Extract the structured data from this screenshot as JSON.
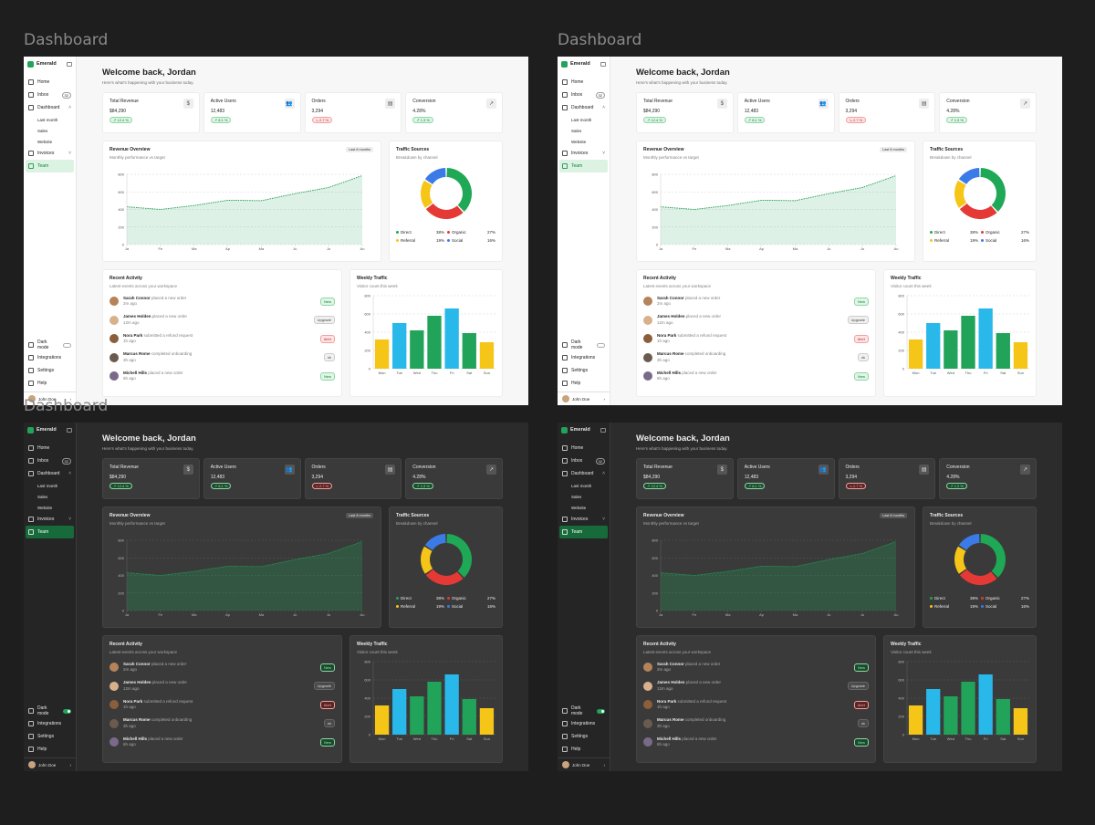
{
  "page_label": "Dashboard",
  "brand": "Emerald",
  "nav": {
    "home": "Home",
    "inbox": "Inbox",
    "inbox_badge": "32",
    "dashboard": "Dashboard",
    "sub": [
      "Last month",
      "Sales",
      "Website"
    ],
    "invoices": "Invoices",
    "team": "Team",
    "dark_mode": "Dark mode",
    "integrations": "Integrations",
    "settings": "Settings",
    "help": "Help"
  },
  "user_name": "John Doe",
  "header": {
    "title": "Welcome back, Jordan",
    "subtitle": "Here's what's happening with your business today."
  },
  "stats": [
    {
      "label": "Total Revenue",
      "value": "$84,290",
      "change": "↗ 12.4 %",
      "dir": "up",
      "icon": "$"
    },
    {
      "label": "Active Users",
      "value": "12,483",
      "change": "↗ 8.1 %",
      "dir": "up",
      "icon": "👥"
    },
    {
      "label": "Orders",
      "value": "3,294",
      "change": "↘ 2.7 %",
      "dir": "down",
      "icon": "▤"
    },
    {
      "label": "Conversion",
      "value": "4.28%",
      "change": "↗ 1.3 %",
      "dir": "up",
      "icon": "↗"
    }
  ],
  "revenue": {
    "title": "Revenue Overview",
    "subtitle": "Monthly performance vs target",
    "range": "Last 8 months"
  },
  "traffic": {
    "title": "Traffic Sources",
    "subtitle": "Breakdown by channel",
    "items": [
      {
        "name": "Direct",
        "pct": "38%",
        "color": "#1fa855"
      },
      {
        "name": "Organic",
        "pct": "27%",
        "color": "#e53935"
      },
      {
        "name": "Referral",
        "pct": "19%",
        "color": "#f5c518"
      },
      {
        "name": "Social",
        "pct": "16%",
        "color": "#3b7be8"
      }
    ]
  },
  "activity": {
    "title": "Recent Activity",
    "subtitle": "Latest events across your workspace",
    "items": [
      {
        "name": "Sarah Connor",
        "action": "placed a new order",
        "time": "2m ago",
        "tag": "New",
        "tag_type": "green"
      },
      {
        "name": "James Holden",
        "action": "placed a new order",
        "time": "12m ago",
        "tag": "Upgrade",
        "tag_type": "gray"
      },
      {
        "name": "Nora Park",
        "action": "submitted a refund request",
        "time": "1h ago",
        "tag": "Alert",
        "tag_type": "red"
      },
      {
        "name": "Marcus Rome",
        "action": "completed onboarding",
        "time": "3h ago",
        "tag": "ok",
        "tag_type": "gray"
      },
      {
        "name": "Michell Hills",
        "action": "placed a new order",
        "time": "6h ago",
        "tag": "New",
        "tag_type": "green"
      }
    ]
  },
  "weekly": {
    "title": "Weekly Traffic",
    "subtitle": "Visitor count this week"
  },
  "colors": {
    "accent": "#22a35a"
  },
  "chart_data": [
    {
      "type": "area",
      "title": "Revenue Overview",
      "x": [
        "Ja",
        "Fe",
        "Ma",
        "Ap",
        "Ma",
        "Ju",
        "Ju",
        "Au"
      ],
      "y_ticks": [
        0,
        200,
        400,
        600,
        800
      ],
      "ylim": [
        0,
        800
      ],
      "values": [
        430,
        400,
        445,
        505,
        500,
        580,
        650,
        785
      ]
    },
    {
      "type": "pie",
      "title": "Traffic Sources",
      "categories": [
        "Direct",
        "Organic",
        "Referral",
        "Social"
      ],
      "values": [
        38,
        27,
        19,
        16
      ]
    },
    {
      "type": "bar",
      "title": "Weekly Traffic",
      "categories": [
        "Mon",
        "Tue",
        "Wed",
        "Thu",
        "Fri",
        "Sat",
        "Sun"
      ],
      "values": [
        320,
        500,
        420,
        580,
        660,
        390,
        290
      ],
      "y_ticks": [
        0,
        200,
        400,
        600,
        800
      ],
      "ylim": [
        0,
        800
      ],
      "bar_colors": [
        "#f5c518",
        "#28b8ea",
        "#22a35a",
        "#22a35a",
        "#28b8ea",
        "#22a35a",
        "#f5c518"
      ]
    }
  ]
}
